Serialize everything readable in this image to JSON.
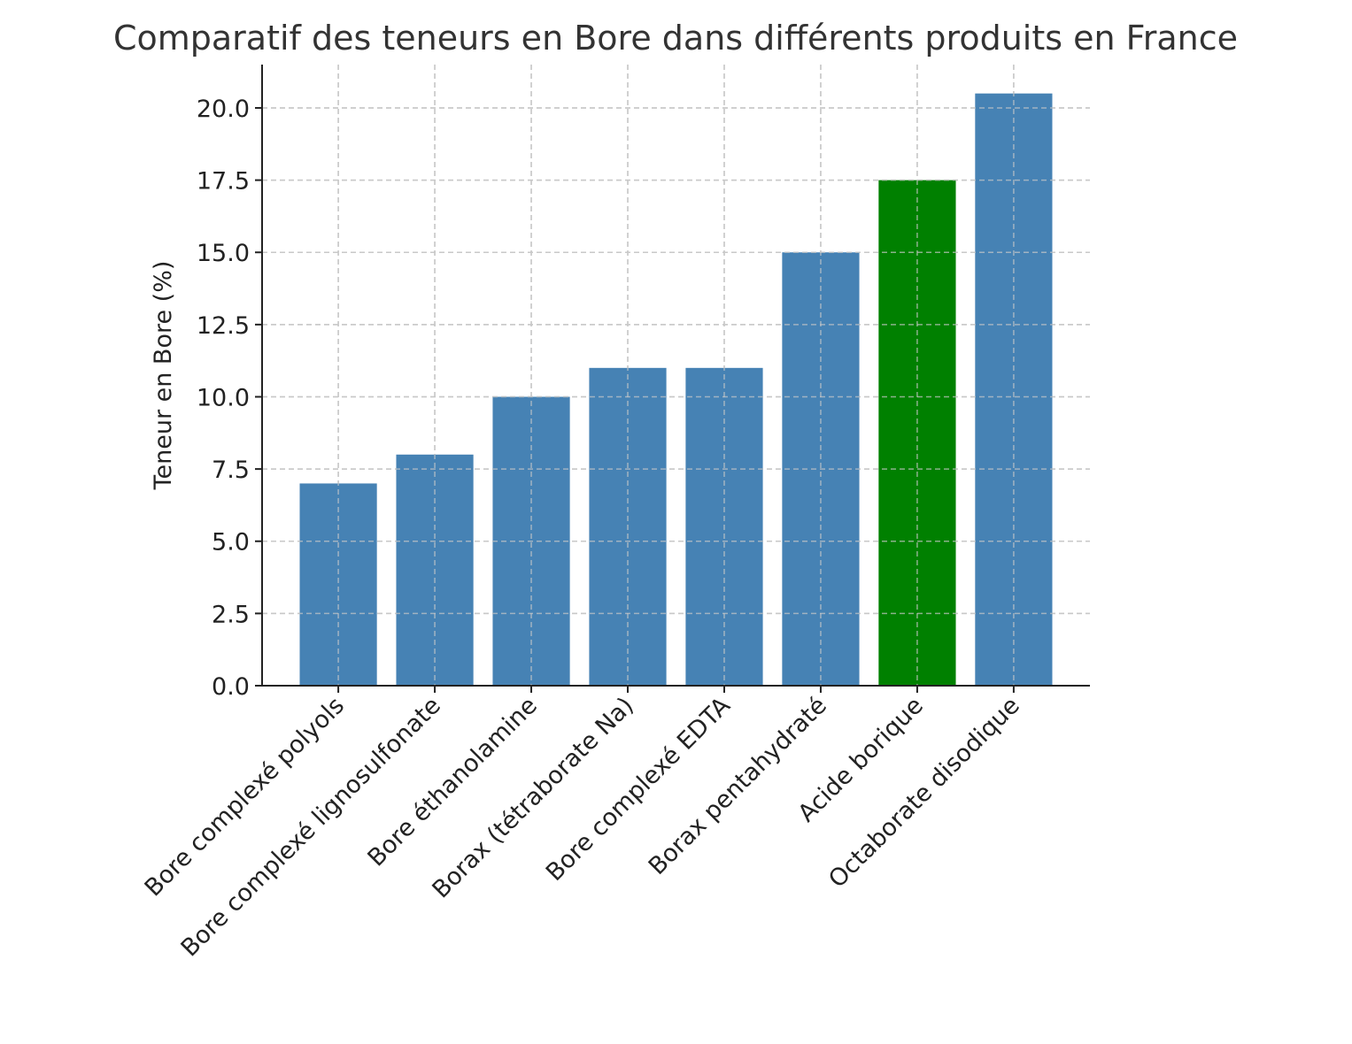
{
  "chart_data": {
    "type": "bar",
    "title": "Comparatif des teneurs en Bore dans différents produits en France",
    "xlabel": "",
    "ylabel": "Teneur en Bore (%)",
    "categories": [
      "Bore complexé polyols",
      "Bore complexé lignosulfonate",
      "Bore éthanolamine",
      "Borax (tétraborate Na)",
      "Bore complexé EDTA",
      "Borax pentahydraté",
      "Acide borique",
      "Octaborate disodique"
    ],
    "values": [
      7,
      8,
      10,
      11,
      11,
      15,
      17.5,
      20.5
    ],
    "colors": [
      "#4682b4",
      "#4682b4",
      "#4682b4",
      "#4682b4",
      "#4682b4",
      "#4682b4",
      "#008000",
      "#4682b4"
    ],
    "ylim": [
      0,
      21.5
    ],
    "yticks": [
      0,
      2.5,
      5,
      7.5,
      10,
      12.5,
      15,
      17.5,
      20
    ],
    "ytick_labels": [
      "0.0",
      "2.5",
      "5.0",
      "7.5",
      "10.0",
      "12.5",
      "15.0",
      "17.5",
      "20.0"
    ],
    "grid": true,
    "legend": "none"
  }
}
